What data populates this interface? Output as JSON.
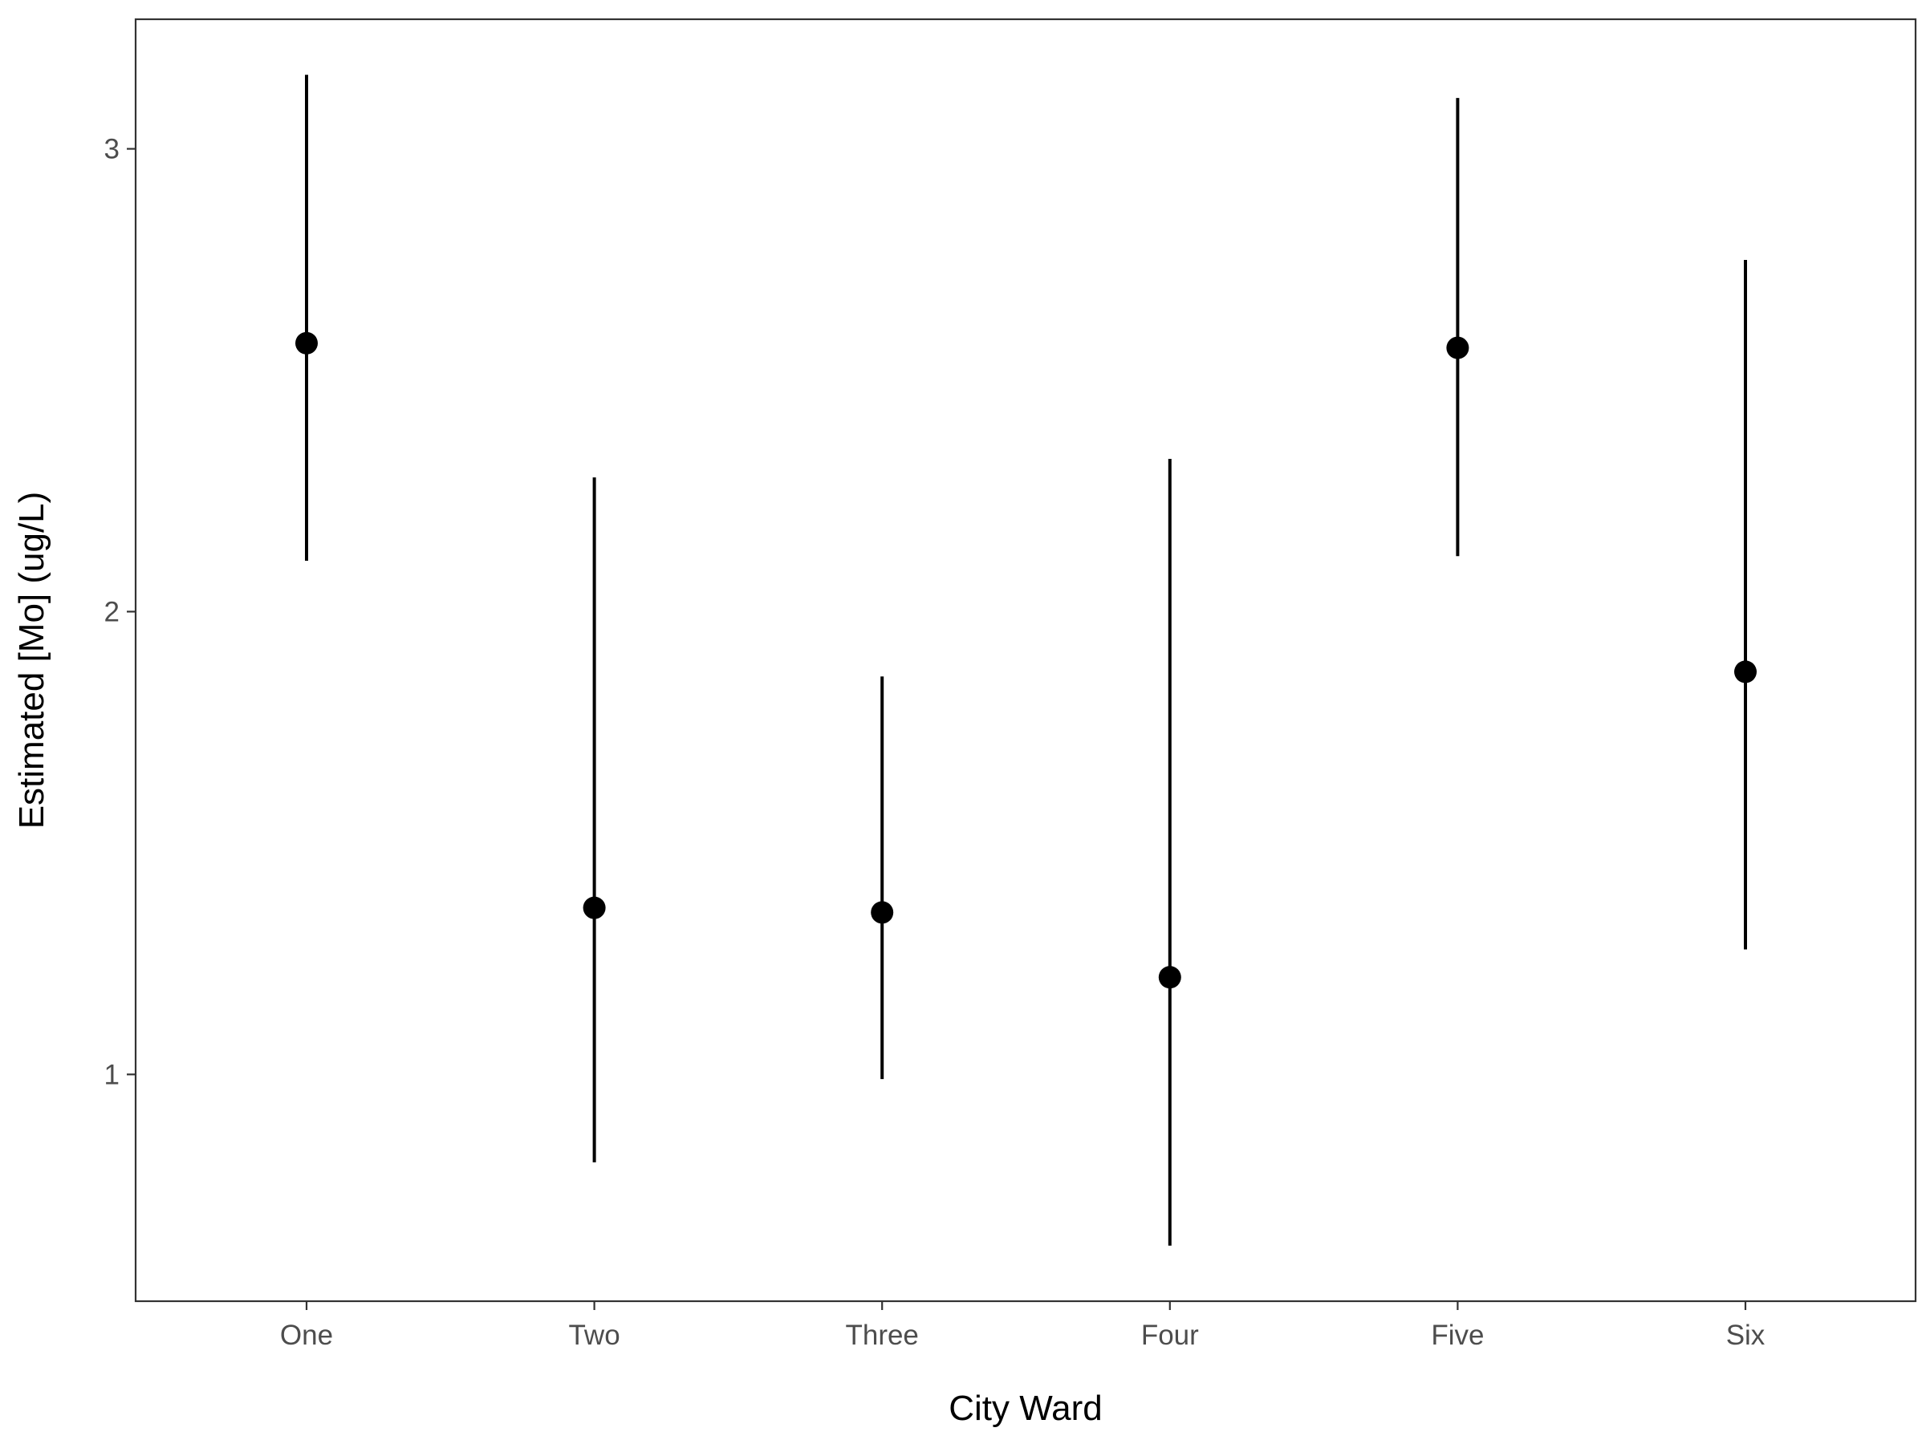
{
  "chart_data": {
    "type": "pointrange",
    "title": "",
    "xlabel": "City Ward",
    "ylabel": "Estimated [Mo] (ug/L)",
    "categories": [
      "One",
      "Two",
      "Three",
      "Four",
      "Five",
      "Six"
    ],
    "estimates": [
      2.58,
      1.36,
      1.35,
      1.21,
      2.57,
      1.87
    ],
    "lower": [
      2.11,
      0.81,
      0.99,
      0.63,
      2.12,
      1.27
    ],
    "upper": [
      3.16,
      2.29,
      1.86,
      2.33,
      3.11,
      2.76
    ],
    "ylim": [
      0.51,
      3.28
    ],
    "yticks": [
      1,
      2,
      3
    ],
    "ytick_labels": [
      "1",
      "2",
      "3"
    ],
    "grid": false,
    "colors": {
      "marks": "#000000",
      "panel_border": "#333333",
      "ticks": "#333333",
      "tick_text": "#4d4d4d",
      "background": "#ffffff"
    }
  }
}
